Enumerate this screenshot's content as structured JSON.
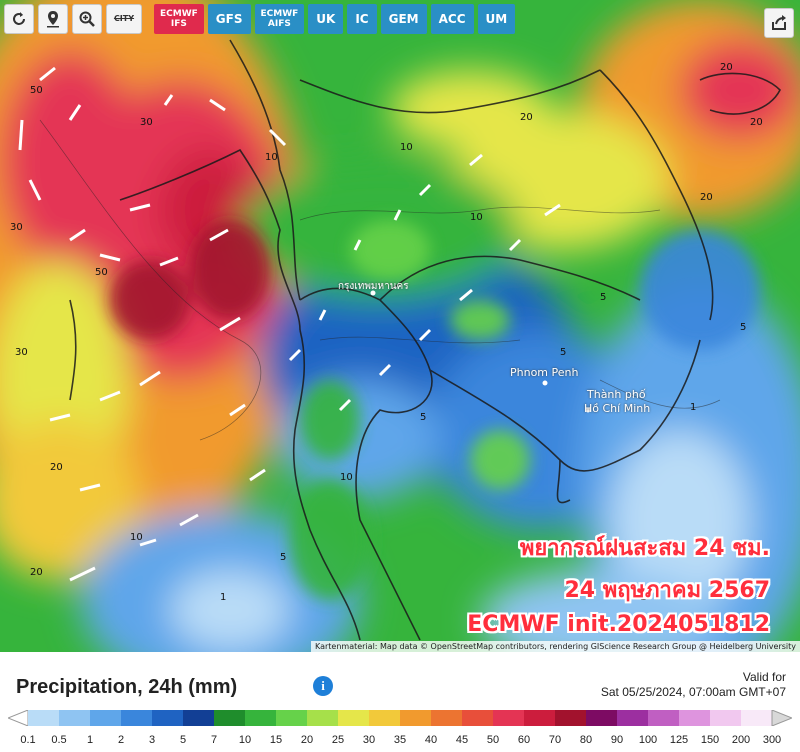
{
  "toolbar": {
    "icons": [
      "refresh-icon",
      "location-pin-icon",
      "zoom-icon"
    ],
    "city_toggle_label": "CITY",
    "models": [
      {
        "label_line1": "ECMWF",
        "label_line2": "IFS",
        "active": true
      },
      {
        "label_line1": "GFS",
        "label_line2": "",
        "active": false
      },
      {
        "label_line1": "ECMWF",
        "label_line2": "AIFS",
        "active": false
      },
      {
        "label_line1": "UK",
        "label_line2": "",
        "active": false
      },
      {
        "label_line1": "IC",
        "label_line2": "",
        "active": false
      },
      {
        "label_line1": "GEM",
        "label_line2": "",
        "active": false
      },
      {
        "label_line1": "ACC",
        "label_line2": "",
        "active": false
      },
      {
        "label_line1": "UM",
        "label_line2": "",
        "active": false
      }
    ],
    "share_icon": "share-icon"
  },
  "map": {
    "cities": [
      {
        "name": "Phnom Penh"
      },
      {
        "name": "Thành phố"
      },
      {
        "name": "Hồ Chí Minh"
      },
      {
        "name": "กรุงเทพมหานคร"
      }
    ],
    "contour_labels": [
      "50",
      "30",
      "20",
      "10",
      "5",
      "1"
    ],
    "overlay": {
      "line1": "พยากรณ์ฝนสะสม 24 ชม.",
      "line2": "24 พฤษภาคม 2567",
      "line3": "ECMWF init.2024051812"
    },
    "attribution": "Kartenmaterial: Map data © OpenStreetMap contributors, rendering GIScience Research Group @ Heidelberg University"
  },
  "legend": {
    "title": "Precipitation, 24h (mm)",
    "info_icon": "i",
    "valid_line1": "Valid for",
    "valid_line2": "Sat 05/25/2024, 07:00am GMT+07",
    "ticks": [
      "0.1",
      "0.5",
      "1",
      "2",
      "3",
      "5",
      "7",
      "10",
      "15",
      "20",
      "25",
      "30",
      "35",
      "40",
      "45",
      "50",
      "60",
      "70",
      "80",
      "90",
      "100",
      "125",
      "150",
      "200",
      "300"
    ],
    "colors": [
      "#b9dcf7",
      "#8fc4f2",
      "#5fa6ea",
      "#3a86dc",
      "#1f63c2",
      "#123f95",
      "#1f8d2c",
      "#36b43c",
      "#66d24a",
      "#a6e04a",
      "#e5e64a",
      "#f2c93a",
      "#f19a2e",
      "#ec7431",
      "#e84f3a",
      "#e43454",
      "#cc1d3d",
      "#a2122d",
      "#7d0b63",
      "#9c2fa0",
      "#c05fc2",
      "#de94de",
      "#f1c8ef",
      "#f8e9f8",
      "#d8d8d8"
    ]
  }
}
